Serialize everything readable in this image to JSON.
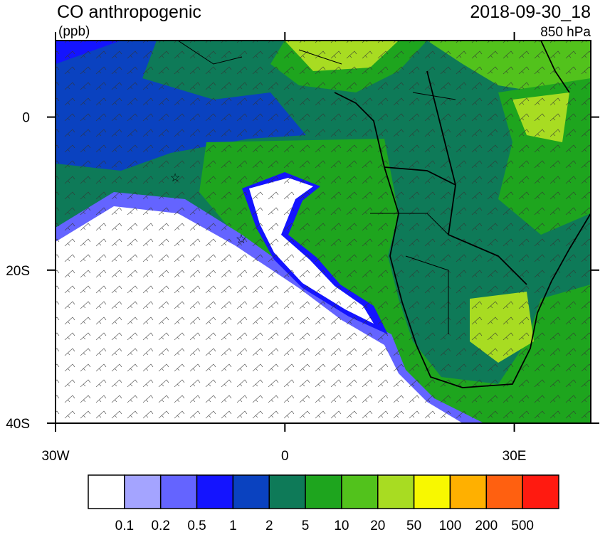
{
  "header": {
    "title": "CO anthropogenic",
    "units": "(ppb)",
    "datetime": "2018-09-30_18",
    "level": "850 hPa"
  },
  "map": {
    "xlim": [
      -30,
      40
    ],
    "ylim": [
      -40,
      10
    ],
    "xticks": [
      {
        "value": -30,
        "label": "30W"
      },
      {
        "value": 0,
        "label": "0"
      },
      {
        "value": 30,
        "label": "30E"
      }
    ],
    "yticks": [
      {
        "value": 0,
        "label": "0"
      },
      {
        "value": -20,
        "label": "20S"
      },
      {
        "value": -40,
        "label": "40S"
      }
    ]
  },
  "colorbar": {
    "colors": [
      "#ffffff",
      "#a4a4ff",
      "#6464ff",
      "#1414ff",
      "#0a42c0",
      "#0e7a58",
      "#1ea51e",
      "#52c21c",
      "#a8dc22",
      "#f8f800",
      "#ffb000",
      "#ff6010",
      "#ff1a10"
    ],
    "labels": [
      "0.1",
      "0.2",
      "0.5",
      "1",
      "2",
      "5",
      "10",
      "20",
      "50",
      "100",
      "200",
      "500"
    ]
  }
}
